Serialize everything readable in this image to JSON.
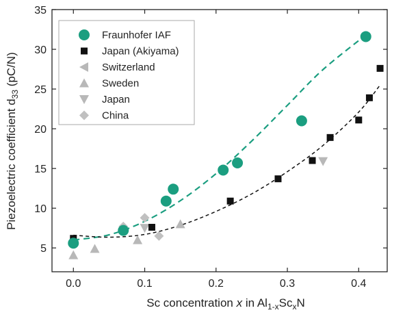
{
  "chart_data": {
    "type": "scatter",
    "title": "",
    "xlabel": {
      "pre": "Sc concentration ",
      "var": "x",
      "mid": " in Al",
      "sub1": "1-x",
      "mid2": "Sc",
      "sub2": "x",
      "post": "N"
    },
    "ylabel": {
      "pre": "Piezoelectric coefficient d",
      "sub": "33",
      "post": " (pC/N)"
    },
    "xlim": [
      -0.03,
      0.44
    ],
    "ylim": [
      2,
      35
    ],
    "xticks": [
      0.0,
      0.1,
      0.2,
      0.3,
      0.4
    ],
    "xtick_labels": [
      "0.0",
      "0.1",
      "0.2",
      "0.3",
      "0.4"
    ],
    "yticks": [
      5,
      10,
      15,
      20,
      25,
      30,
      35
    ],
    "ytick_labels": [
      "5",
      "10",
      "15",
      "20",
      "25",
      "30",
      "35"
    ],
    "grid": false,
    "legend": "top-left",
    "series": [
      {
        "name": "Fraunhofer IAF",
        "marker": "circle",
        "color": "#1b9e80",
        "points": [
          [
            0.0,
            5.6
          ],
          [
            0.07,
            7.2
          ],
          [
            0.13,
            10.9
          ],
          [
            0.14,
            12.4
          ],
          [
            0.21,
            14.8
          ],
          [
            0.23,
            15.7
          ],
          [
            0.32,
            21.0
          ],
          [
            0.41,
            31.6
          ]
        ]
      },
      {
        "name": "Japan (Akiyama)",
        "marker": "square",
        "color": "#111111",
        "points": [
          [
            0.0,
            6.2
          ],
          [
            0.11,
            7.6
          ],
          [
            0.22,
            10.9
          ],
          [
            0.287,
            13.7
          ],
          [
            0.335,
            16.0
          ],
          [
            0.36,
            18.9
          ],
          [
            0.4,
            21.1
          ],
          [
            0.415,
            23.9
          ],
          [
            0.43,
            27.6
          ]
        ]
      },
      {
        "name": "Switzerland",
        "marker": "triangle-left",
        "color": "#b8b8b8",
        "points": []
      },
      {
        "name": "Sweden",
        "marker": "triangle-up",
        "color": "#b8b8b8",
        "points": [
          [
            0.0,
            4.1
          ],
          [
            0.03,
            4.9
          ],
          [
            0.09,
            6.0
          ],
          [
            0.15,
            8.0
          ]
        ]
      },
      {
        "name": "Japan",
        "marker": "triangle-down",
        "color": "#b8b8b8",
        "points": [
          [
            0.1,
            7.5
          ],
          [
            0.35,
            15.9
          ]
        ]
      },
      {
        "name": "China",
        "marker": "diamond",
        "color": "#c0c0c0",
        "points": [
          [
            0.07,
            7.7
          ],
          [
            0.1,
            8.8
          ],
          [
            0.12,
            6.5
          ]
        ]
      }
    ],
    "fits": [
      {
        "color": "#1b9e80",
        "style": "dashed",
        "points": [
          [
            0.0,
            6.0
          ],
          [
            0.05,
            6.65
          ],
          [
            0.1,
            8.35
          ],
          [
            0.15,
            10.95
          ],
          [
            0.2,
            14.35
          ],
          [
            0.25,
            18.45
          ],
          [
            0.3,
            22.95
          ],
          [
            0.35,
            27.45
          ],
          [
            0.41,
            31.8
          ]
        ]
      },
      {
        "color": "#111111",
        "style": "dashed",
        "points": [
          [
            0.0,
            6.6
          ],
          [
            0.05,
            6.35
          ],
          [
            0.1,
            6.7
          ],
          [
            0.15,
            7.85
          ],
          [
            0.2,
            9.6
          ],
          [
            0.25,
            11.8
          ],
          [
            0.3,
            14.6
          ],
          [
            0.35,
            17.9
          ],
          [
            0.4,
            22.1
          ],
          [
            0.43,
            25.5
          ]
        ]
      }
    ]
  }
}
